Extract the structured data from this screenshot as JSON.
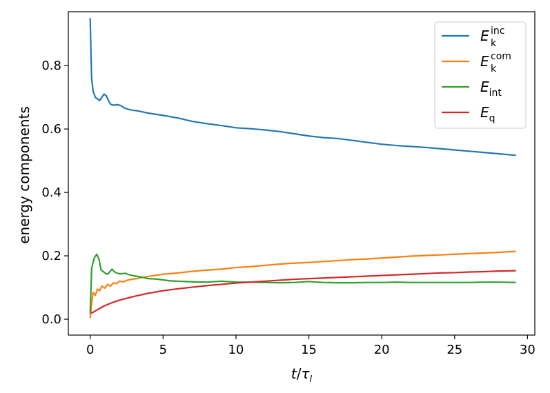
{
  "chart_data": {
    "type": "line",
    "xlabel_main": "t",
    "xlabel_sub": "τ",
    "xlabel_subsub": "l",
    "ylabel": "energy components",
    "xlim": [
      -1.5,
      30.5
    ],
    "ylim": [
      -0.05,
      0.97
    ],
    "xticks": [
      0,
      5,
      10,
      15,
      20,
      25,
      30
    ],
    "yticks": [
      0.0,
      0.2,
      0.4,
      0.6,
      0.8
    ],
    "ytick_labels": [
      "0.0",
      "0.2",
      "0.4",
      "0.6",
      "0.8"
    ],
    "legend_position": "top-right",
    "series": [
      {
        "key": "inc",
        "symbol": "E",
        "sub": "k",
        "sup": "inc",
        "color": "#1f77b4",
        "points": [
          [
            0.0,
            0.95
          ],
          [
            0.05,
            0.85
          ],
          [
            0.1,
            0.76
          ],
          [
            0.2,
            0.72
          ],
          [
            0.35,
            0.7
          ],
          [
            0.5,
            0.695
          ],
          [
            0.65,
            0.69
          ],
          [
            0.8,
            0.7
          ],
          [
            0.95,
            0.71
          ],
          [
            1.1,
            0.705
          ],
          [
            1.25,
            0.69
          ],
          [
            1.4,
            0.678
          ],
          [
            1.6,
            0.675
          ],
          [
            1.85,
            0.677
          ],
          [
            2.1,
            0.674
          ],
          [
            2.4,
            0.665
          ],
          [
            2.8,
            0.66
          ],
          [
            3.3,
            0.657
          ],
          [
            4.0,
            0.65
          ],
          [
            5.0,
            0.643
          ],
          [
            6.0,
            0.635
          ],
          [
            7.0,
            0.624
          ],
          [
            8.0,
            0.617
          ],
          [
            9.0,
            0.611
          ],
          [
            10.0,
            0.604
          ],
          [
            11.0,
            0.601
          ],
          [
            12.0,
            0.597
          ],
          [
            13.0,
            0.592
          ],
          [
            14.0,
            0.585
          ],
          [
            15.0,
            0.578
          ],
          [
            16.0,
            0.573
          ],
          [
            17.0,
            0.57
          ],
          [
            18.0,
            0.564
          ],
          [
            19.0,
            0.558
          ],
          [
            20.0,
            0.552
          ],
          [
            21.0,
            0.548
          ],
          [
            22.0,
            0.545
          ],
          [
            23.0,
            0.542
          ],
          [
            24.0,
            0.538
          ],
          [
            25.0,
            0.534
          ],
          [
            26.0,
            0.53
          ],
          [
            27.0,
            0.526
          ],
          [
            28.0,
            0.522
          ],
          [
            29.2,
            0.517
          ]
        ]
      },
      {
        "key": "com",
        "symbol": "E",
        "sub": "k",
        "sup": "com",
        "color": "#ff7f0e",
        "points": [
          [
            0.0,
            0.003
          ],
          [
            0.1,
            0.05
          ],
          [
            0.2,
            0.085
          ],
          [
            0.35,
            0.075
          ],
          [
            0.5,
            0.095
          ],
          [
            0.65,
            0.09
          ],
          [
            0.8,
            0.105
          ],
          [
            1.0,
            0.098
          ],
          [
            1.2,
            0.11
          ],
          [
            1.4,
            0.104
          ],
          [
            1.6,
            0.115
          ],
          [
            1.8,
            0.112
          ],
          [
            2.0,
            0.12
          ],
          [
            2.3,
            0.118
          ],
          [
            2.6,
            0.124
          ],
          [
            3.0,
            0.127
          ],
          [
            3.5,
            0.131
          ],
          [
            4.0,
            0.135
          ],
          [
            5.0,
            0.142
          ],
          [
            6.0,
            0.146
          ],
          [
            7.0,
            0.151
          ],
          [
            8.0,
            0.155
          ],
          [
            9.0,
            0.158
          ],
          [
            10.0,
            0.163
          ],
          [
            11.0,
            0.166
          ],
          [
            12.0,
            0.17
          ],
          [
            13.0,
            0.174
          ],
          [
            14.0,
            0.177
          ],
          [
            15.0,
            0.179
          ],
          [
            16.0,
            0.182
          ],
          [
            17.0,
            0.185
          ],
          [
            18.0,
            0.188
          ],
          [
            19.0,
            0.19
          ],
          [
            20.0,
            0.193
          ],
          [
            21.0,
            0.196
          ],
          [
            22.0,
            0.199
          ],
          [
            23.0,
            0.201
          ],
          [
            24.0,
            0.203
          ],
          [
            25.0,
            0.205
          ],
          [
            26.0,
            0.207
          ],
          [
            27.0,
            0.209
          ],
          [
            28.0,
            0.211
          ],
          [
            29.2,
            0.214
          ]
        ]
      },
      {
        "key": "int",
        "symbol": "E",
        "sub": "int",
        "sup": "",
        "color": "#2ca02c",
        "points": [
          [
            0.0,
            0.02
          ],
          [
            0.1,
            0.16
          ],
          [
            0.2,
            0.18
          ],
          [
            0.3,
            0.195
          ],
          [
            0.45,
            0.205
          ],
          [
            0.6,
            0.19
          ],
          [
            0.75,
            0.155
          ],
          [
            0.9,
            0.15
          ],
          [
            1.05,
            0.145
          ],
          [
            1.2,
            0.142
          ],
          [
            1.35,
            0.15
          ],
          [
            1.5,
            0.158
          ],
          [
            1.65,
            0.15
          ],
          [
            1.85,
            0.145
          ],
          [
            2.1,
            0.143
          ],
          [
            2.4,
            0.145
          ],
          [
            2.7,
            0.14
          ],
          [
            3.0,
            0.137
          ],
          [
            3.5,
            0.133
          ],
          [
            4.0,
            0.128
          ],
          [
            4.5,
            0.127
          ],
          [
            5.0,
            0.124
          ],
          [
            5.5,
            0.121
          ],
          [
            6.0,
            0.12
          ],
          [
            7.0,
            0.118
          ],
          [
            8.0,
            0.117
          ],
          [
            9.0,
            0.12
          ],
          [
            10.0,
            0.117
          ],
          [
            11.0,
            0.117
          ],
          [
            12.0,
            0.116
          ],
          [
            13.0,
            0.115
          ],
          [
            14.0,
            0.116
          ],
          [
            15.0,
            0.119
          ],
          [
            16.0,
            0.116
          ],
          [
            17.0,
            0.115
          ],
          [
            18.0,
            0.115
          ],
          [
            19.0,
            0.116
          ],
          [
            20.0,
            0.116
          ],
          [
            21.0,
            0.117
          ],
          [
            22.0,
            0.116
          ],
          [
            23.0,
            0.116
          ],
          [
            24.0,
            0.116
          ],
          [
            25.0,
            0.116
          ],
          [
            26.0,
            0.116
          ],
          [
            27.0,
            0.117
          ],
          [
            28.0,
            0.117
          ],
          [
            29.2,
            0.116
          ]
        ]
      },
      {
        "key": "q",
        "symbol": "E",
        "sub": "q",
        "sup": "",
        "color": "#d62728",
        "points": [
          [
            0.0,
            0.018
          ],
          [
            0.2,
            0.022
          ],
          [
            0.5,
            0.03
          ],
          [
            1.0,
            0.043
          ],
          [
            1.5,
            0.052
          ],
          [
            2.0,
            0.06
          ],
          [
            3.0,
            0.072
          ],
          [
            4.0,
            0.082
          ],
          [
            5.0,
            0.09
          ],
          [
            6.0,
            0.096
          ],
          [
            7.0,
            0.101
          ],
          [
            8.0,
            0.106
          ],
          [
            9.0,
            0.11
          ],
          [
            10.0,
            0.114
          ],
          [
            11.0,
            0.117
          ],
          [
            12.0,
            0.12
          ],
          [
            13.0,
            0.123
          ],
          [
            14.0,
            0.126
          ],
          [
            15.0,
            0.128
          ],
          [
            16.0,
            0.13
          ],
          [
            17.0,
            0.132
          ],
          [
            18.0,
            0.134
          ],
          [
            19.0,
            0.136
          ],
          [
            20.0,
            0.138
          ],
          [
            21.0,
            0.14
          ],
          [
            22.0,
            0.142
          ],
          [
            23.0,
            0.144
          ],
          [
            24.0,
            0.146
          ],
          [
            25.0,
            0.147
          ],
          [
            26.0,
            0.149
          ],
          [
            27.0,
            0.15
          ],
          [
            28.0,
            0.152
          ],
          [
            29.2,
            0.153
          ]
        ]
      }
    ]
  }
}
